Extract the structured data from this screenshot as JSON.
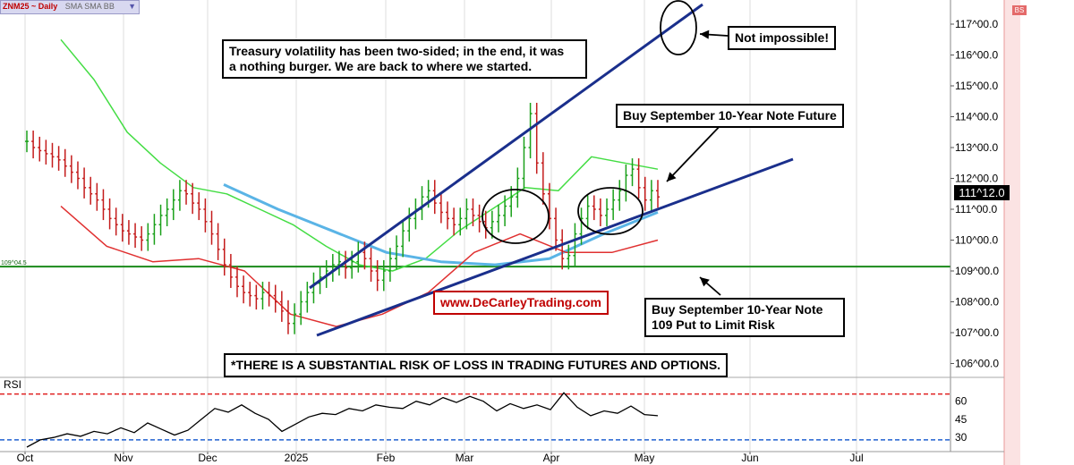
{
  "header": {
    "symbol": "ZNM25 ~ Daily",
    "indicators": "SMA  SMA  BB"
  },
  "chart_data": [
    {
      "type": "line",
      "subtype": "bar (OHLC) price chart",
      "instrument": "ZNM25",
      "x_ticks": [
        "Oct",
        "Nov",
        "Dec",
        "2025",
        "Feb",
        "Mar",
        "Apr",
        "May",
        "Jun",
        "Jul"
      ],
      "y_ticks": [
        "106^00.0",
        "107^00.0",
        "108^00.0",
        "109^00.0",
        "110^00.0",
        "111^00.0",
        "112^00.0",
        "113^00.0",
        "114^00.0",
        "115^00.0",
        "116^00.0",
        "117^00.0"
      ],
      "ylim": [
        105.8,
        117.4
      ],
      "last_price": 111.375,
      "last_price_label": "111^12.0",
      "horizontal_line": {
        "value": 109.14,
        "label": "109^04.5",
        "color": "#1a8a1a"
      },
      "price_series": [
        113.2,
        113.0,
        112.9,
        112.8,
        112.7,
        112.6,
        112.4,
        112.2,
        112.0,
        111.7,
        111.5,
        111.3,
        111.0,
        110.7,
        110.5,
        110.3,
        110.2,
        110.1,
        110.0,
        110.2,
        110.5,
        110.8,
        111.0,
        111.3,
        111.6,
        111.5,
        111.2,
        111.0,
        110.6,
        110.2,
        109.7,
        109.2,
        108.8,
        108.5,
        108.3,
        108.2,
        108.1,
        108.3,
        108.2,
        108.0,
        107.7,
        107.3,
        107.6,
        108.0,
        108.3,
        108.6,
        108.8,
        109.0,
        109.2,
        109.3,
        109.1,
        109.3,
        109.6,
        109.4,
        109.0,
        108.7,
        109.0,
        109.4,
        109.8,
        110.3,
        110.7,
        111.0,
        111.4,
        111.6,
        111.2,
        110.9,
        110.7,
        110.5,
        110.7,
        111.0,
        110.8,
        110.6,
        110.4,
        110.6,
        110.8,
        111.1,
        111.4,
        112.0,
        113.0,
        114.1,
        112.5,
        111.5,
        110.7,
        110.0,
        109.4,
        109.5,
        110.2,
        110.7,
        111.1,
        111.0,
        110.8,
        111.0,
        111.3,
        111.6,
        112.1,
        112.3,
        111.7,
        111.3,
        111.6,
        111.4
      ],
      "series": [
        {
          "name": "SMA (short)",
          "color": "#44dd44",
          "values": [
            116.5,
            115.2,
            113.5,
            112.5,
            111.7,
            111.5,
            111.0,
            110.5,
            109.8,
            109.2,
            109.0,
            109.4,
            110.3,
            111.0,
            111.7,
            111.6,
            112.7,
            112.5,
            112.3
          ]
        },
        {
          "name": "SMA (long)",
          "color": "#5ab4e6",
          "values": [
            111.8,
            111.0,
            110.3,
            109.6,
            109.3,
            109.2,
            109.4,
            110.2,
            110.9
          ]
        },
        {
          "name": "Lower band",
          "color": "#e03030",
          "values": [
            111.1,
            109.8,
            109.3,
            109.4,
            109.0,
            107.6,
            107.2,
            107.6,
            108.3,
            109.6,
            110.2,
            109.6,
            109.6,
            110.0
          ]
        }
      ],
      "trend_lines": [
        {
          "name": "upper channel",
          "color": "#1a2f8c"
        },
        {
          "name": "lower channel",
          "color": "#1a2f8c"
        }
      ],
      "annotations": [
        "Treasury volatility has been two-sided; in the end, it was\na nothing burger. We are back to where we started.",
        "Not impossible!",
        "Buy September 10-Year Note Future",
        "www.DeCarleyTrading.com",
        "Buy September 10-Year Note\n109 Put to Limit Risk",
        "*THERE IS A SUBSTANTIAL RISK OF LOSS IN TRADING FUTURES AND OPTIONS."
      ]
    },
    {
      "type": "line",
      "title": "RSI",
      "y_ticks": [
        "60",
        "45",
        "30"
      ],
      "ylim": [
        22,
        70
      ],
      "upper_level": 66,
      "lower_level": 28,
      "series": [
        {
          "name": "RSI",
          "color": "#000000",
          "values": [
            22,
            28,
            30,
            33,
            31,
            35,
            33,
            38,
            34,
            42,
            37,
            32,
            36,
            45,
            54,
            51,
            57,
            50,
            45,
            35,
            41,
            47,
            50,
            49,
            54,
            52,
            57,
            55,
            54,
            60,
            57,
            63,
            59,
            64,
            60,
            52,
            58,
            54,
            57,
            53,
            67,
            55,
            48,
            52,
            50,
            56,
            49,
            48
          ]
        }
      ]
    }
  ]
}
